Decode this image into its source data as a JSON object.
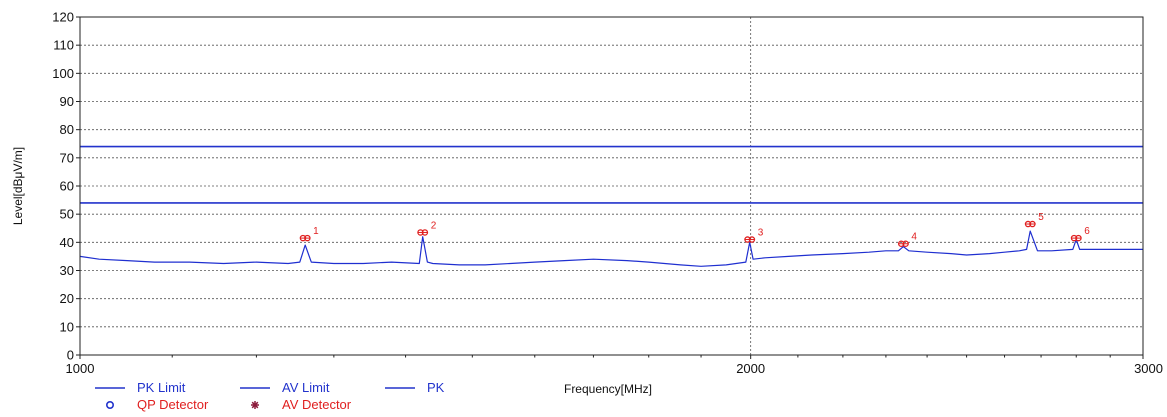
{
  "chart_data": {
    "type": "line",
    "title": "",
    "xlabel": "Frequency[MHz]",
    "ylabel": "Level[dBμV/m]",
    "xlim": [
      1000,
      3000
    ],
    "ylim": [
      0,
      120
    ],
    "x_scale": "log",
    "x_ticks": [
      1000,
      2000,
      3000
    ],
    "y_ticks": [
      0,
      10,
      20,
      30,
      40,
      50,
      60,
      70,
      80,
      90,
      100,
      110,
      120
    ],
    "grid": true,
    "series": [
      {
        "name": "PK Limit",
        "color": "#2233cc",
        "x": [
          1000,
          3000
        ],
        "y": [
          74,
          74
        ]
      },
      {
        "name": "AV Limit",
        "color": "#2233cc",
        "x": [
          1000,
          3000
        ],
        "y": [
          54,
          54
        ]
      },
      {
        "name": "PK",
        "color": "#1f2fd0",
        "x": [
          1000,
          1020,
          1050,
          1080,
          1120,
          1160,
          1200,
          1240,
          1255,
          1262,
          1270,
          1300,
          1340,
          1380,
          1420,
          1425,
          1432,
          1440,
          1480,
          1520,
          1560,
          1600,
          1650,
          1700,
          1760,
          1800,
          1860,
          1900,
          1950,
          1990,
          1998,
          2005,
          2030,
          2080,
          2130,
          2200,
          2260,
          2300,
          2330,
          2342,
          2355,
          2400,
          2460,
          2500,
          2560,
          2600,
          2640,
          2660,
          2670,
          2690,
          2730,
          2790,
          2800,
          2810,
          2850,
          2900,
          2960,
          3000
        ],
        "y": [
          35,
          34,
          33.5,
          33,
          33,
          32.5,
          33,
          32.5,
          33,
          39,
          33,
          32.5,
          32.5,
          33,
          32.5,
          42,
          33,
          32.5,
          32,
          32,
          32.5,
          33,
          33.5,
          34,
          33.5,
          33,
          32,
          31.5,
          32,
          33,
          40,
          34,
          34.5,
          35,
          35.5,
          36,
          36.5,
          37,
          37,
          38.5,
          37,
          36.5,
          36,
          35.5,
          36,
          36.5,
          37,
          37.5,
          44,
          37,
          37,
          37.5,
          41,
          37.5,
          37.5,
          37.5,
          37.5,
          37.5
        ]
      }
    ],
    "markers": [
      {
        "label": "1",
        "x": 1262,
        "y": 41.5
      },
      {
        "label": "2",
        "x": 1425,
        "y": 43.5
      },
      {
        "label": "3",
        "x": 1998,
        "y": 41
      },
      {
        "label": "4",
        "x": 2342,
        "y": 39.5
      },
      {
        "label": "5",
        "x": 2670,
        "y": 46.5
      },
      {
        "label": "6",
        "x": 2800,
        "y": 41.5
      }
    ],
    "legend": {
      "placement": "bottom-left",
      "entries": [
        {
          "name": "PK Limit",
          "symbol": "line",
          "color": "#2233cc"
        },
        {
          "name": "AV Limit",
          "symbol": "line",
          "color": "#2233cc"
        },
        {
          "name": "PK",
          "symbol": "line",
          "color": "#2233cc"
        },
        {
          "name": "QP Detector",
          "symbol": "circle",
          "color": "#2233cc",
          "text_color": "#e02020"
        },
        {
          "name": "AV Detector",
          "symbol": "asterisk",
          "color": "#8b1a3a",
          "text_color": "#e02020"
        }
      ]
    }
  }
}
